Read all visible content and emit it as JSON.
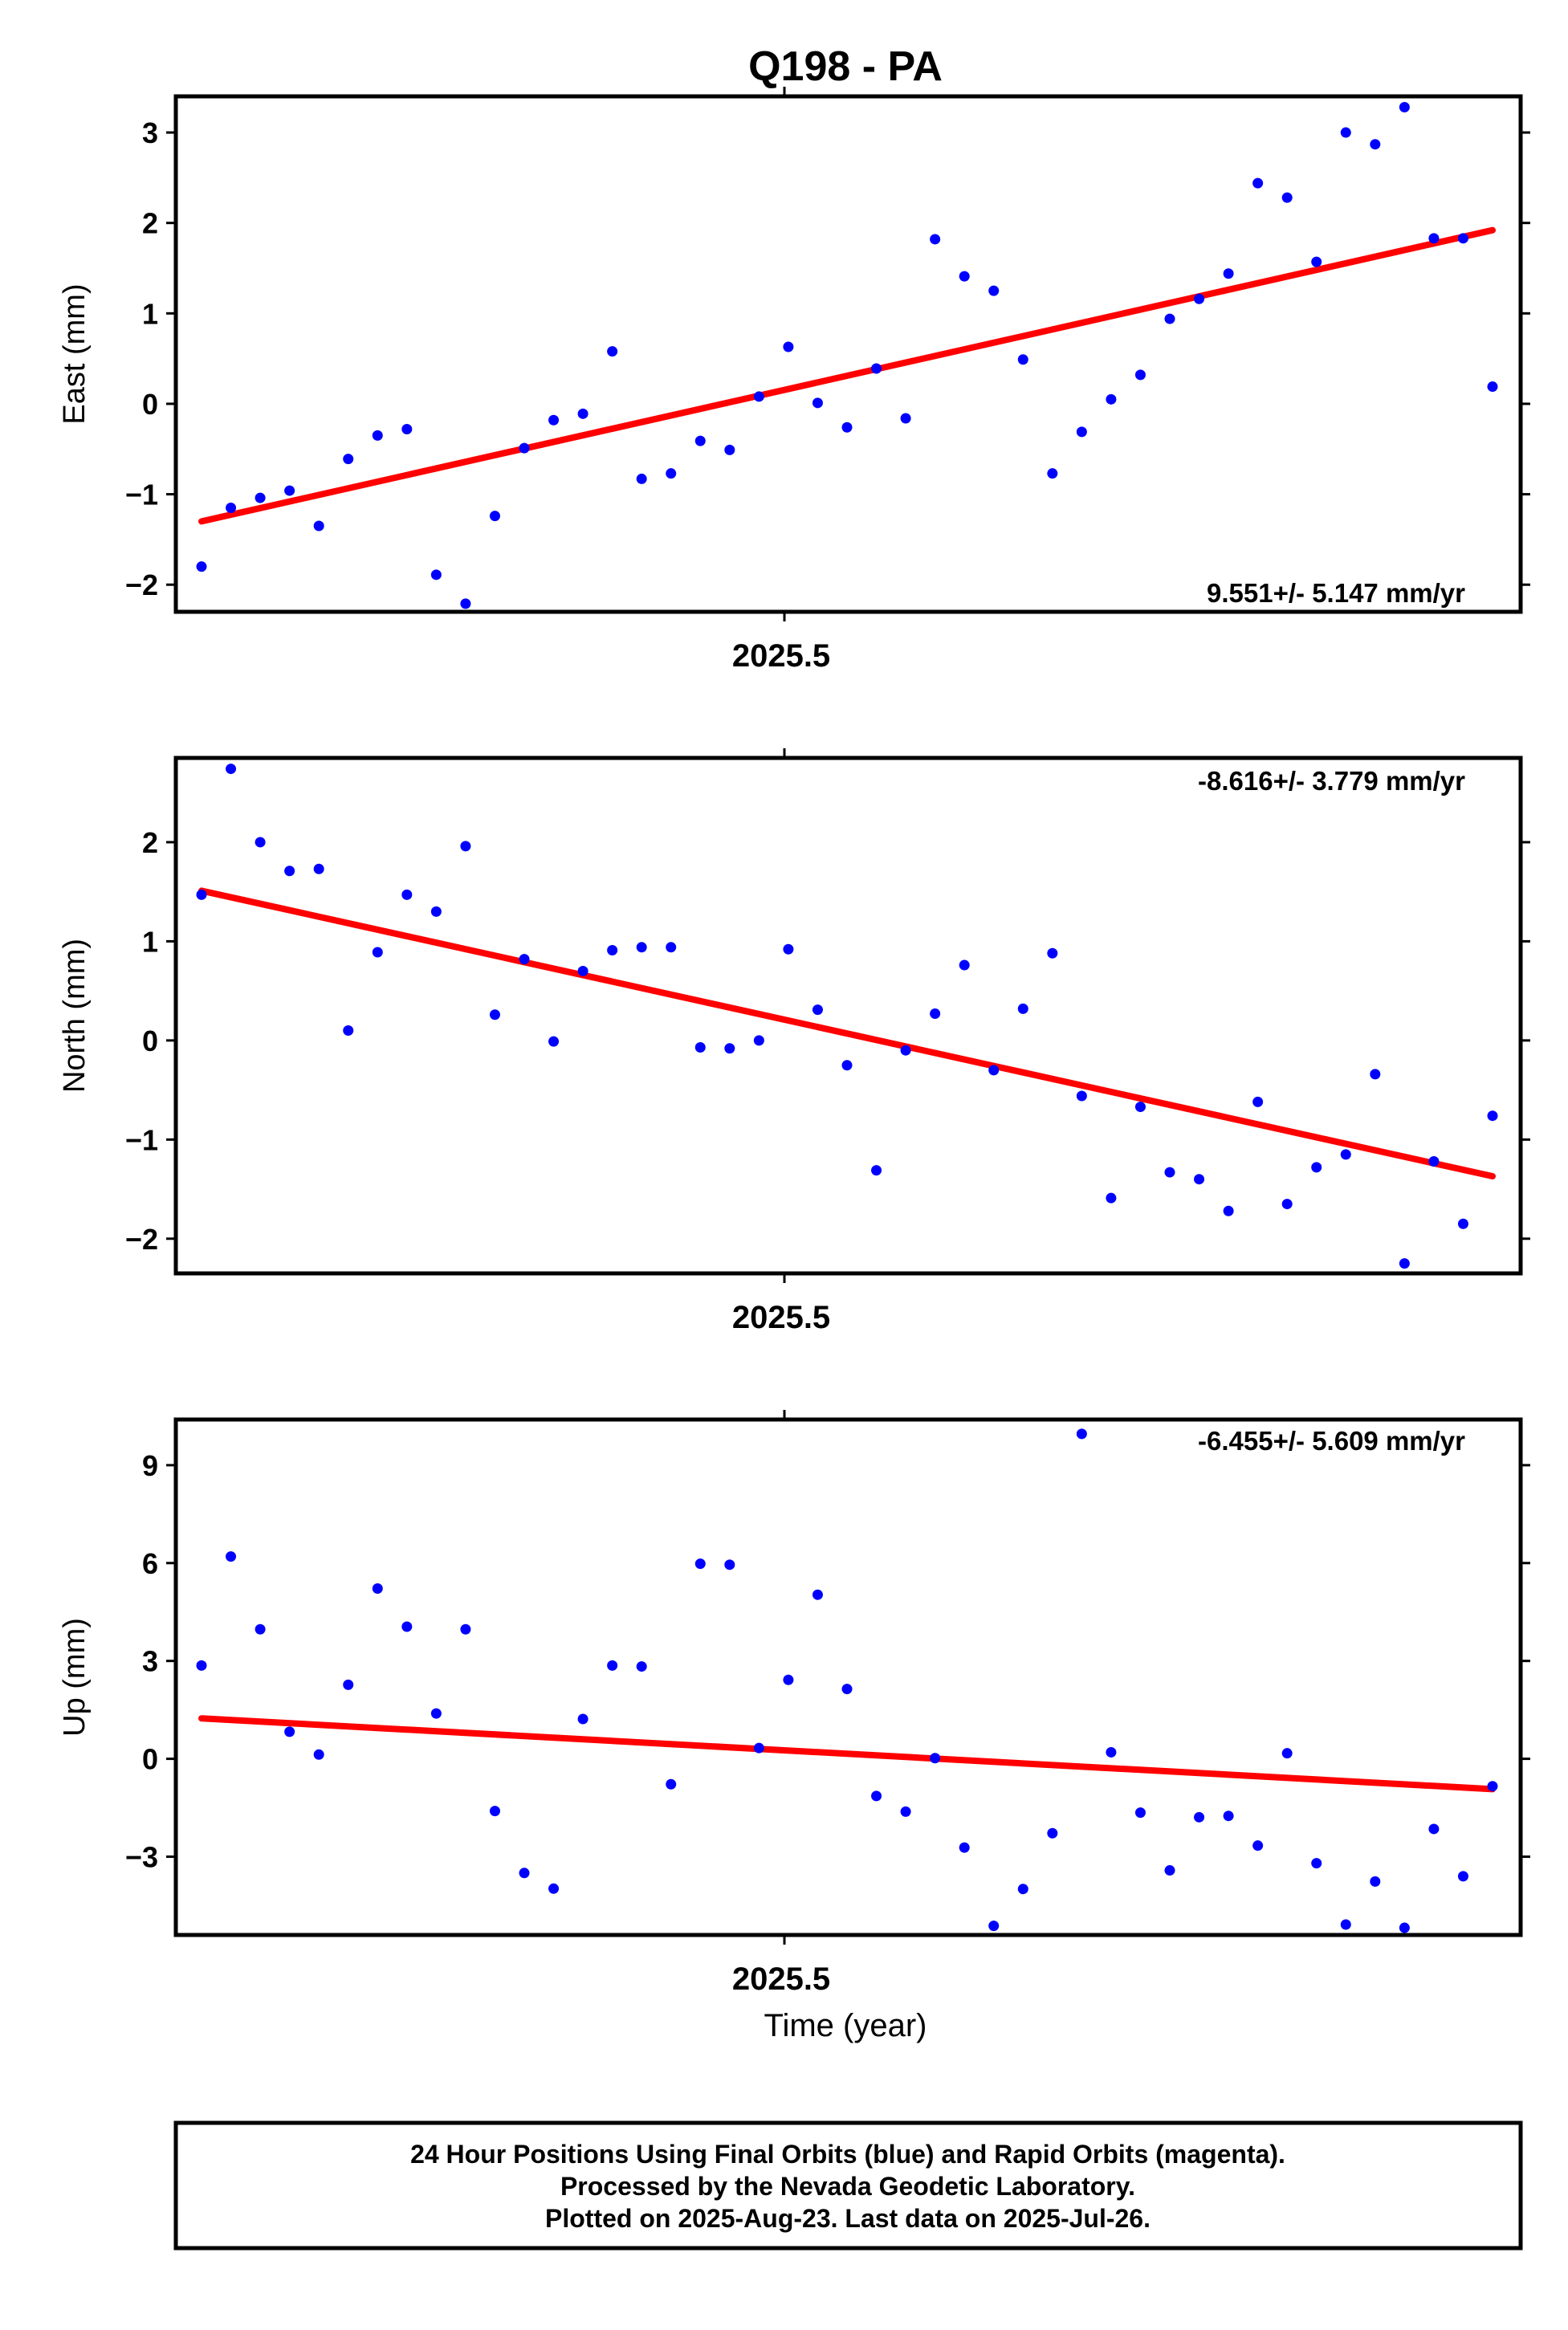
{
  "title": "Q198 - PA",
  "chart_data": [
    {
      "type": "scatter",
      "name": "east",
      "ylabel": "East (mm)",
      "xtick_label": "2025.5",
      "ylim": [
        -2.3,
        3.4
      ],
      "yticks": [
        -2,
        -1,
        0,
        1,
        2,
        3
      ],
      "ytick_labels": [
        "−2",
        "−1",
        "0",
        "1",
        "2",
        "3"
      ],
      "rate_label": "9.551+/- 5.147 mm/yr",
      "rate_position": "bottom-right",
      "points": [
        -1.8,
        -1.15,
        -1.04,
        -0.96,
        -1.35,
        -0.61,
        -0.35,
        -0.28,
        -1.89,
        -2.21,
        -1.24,
        -0.49,
        -0.18,
        -0.11,
        0.58,
        -0.83,
        -0.77,
        -0.41,
        -0.51,
        0.08,
        0.63,
        0.01,
        -0.26,
        0.39,
        -0.16,
        1.82,
        1.41,
        1.25,
        0.49,
        -0.77,
        -0.31,
        0.05,
        0.32,
        0.94,
        1.16,
        1.44,
        2.44,
        2.28,
        1.57,
        3.0,
        2.87,
        3.28,
        1.83,
        1.83,
        0.19
      ],
      "trend": [
        -1.3,
        1.92
      ],
      "point_color": "#0000ff",
      "trend_color": "#ff0000"
    },
    {
      "type": "scatter",
      "name": "north",
      "ylabel": "North (mm)",
      "xtick_label": "2025.5",
      "ylim": [
        -2.35,
        2.85
      ],
      "yticks": [
        -2,
        -1,
        0,
        1,
        2
      ],
      "ytick_labels": [
        "−2",
        "−1",
        "0",
        "1",
        "2"
      ],
      "rate_label": "-8.616+/- 3.779 mm/yr",
      "rate_position": "top-right",
      "points": [
        1.47,
        2.74,
        2.0,
        1.71,
        1.73,
        0.1,
        0.89,
        1.47,
        1.3,
        1.96,
        0.26,
        0.82,
        -0.01,
        0.7,
        0.91,
        0.94,
        0.94,
        -0.07,
        -0.08,
        0.0,
        0.92,
        0.31,
        -0.25,
        -1.31,
        -0.1,
        0.27,
        0.76,
        -0.3,
        0.32,
        0.88,
        -0.56,
        -1.59,
        -0.67,
        -1.33,
        -1.4,
        -1.72,
        -0.62,
        -1.65,
        -1.28,
        -1.15,
        -0.34,
        -2.25,
        -1.22,
        -1.85,
        -0.76
      ],
      "trend": [
        1.51,
        -1.37
      ],
      "point_color": "#0000ff",
      "trend_color": "#ff0000"
    },
    {
      "type": "scatter",
      "name": "up",
      "ylabel": "Up (mm)",
      "xtick_label": "2025.5",
      "xlabel": "Time (year)",
      "ylim": [
        -5.4,
        10.4
      ],
      "yticks": [
        -3,
        0,
        3,
        6,
        9
      ],
      "ytick_labels": [
        "−3",
        "0",
        "3",
        "6",
        "9"
      ],
      "rate_label": "-6.455+/- 5.609 mm/yr",
      "rate_position": "top-right",
      "points": [
        2.86,
        6.2,
        3.97,
        0.83,
        0.13,
        2.27,
        5.22,
        4.05,
        1.39,
        3.97,
        -1.6,
        -3.5,
        -3.98,
        1.22,
        2.86,
        2.83,
        -0.78,
        5.98,
        5.95,
        0.33,
        2.42,
        5.03,
        2.14,
        -1.14,
        -1.62,
        0.02,
        -2.72,
        -5.12,
        -3.99,
        -2.28,
        9.96,
        0.2,
        -1.65,
        -3.42,
        -1.79,
        -1.75,
        -2.66,
        0.17,
        -3.2,
        -5.08,
        -3.76,
        -5.18,
        -2.15,
        -3.6,
        -0.84
      ],
      "trend": [
        1.24,
        -0.93
      ],
      "point_color": "#0000ff",
      "trend_color": "#ff0000"
    }
  ],
  "footer": {
    "line1": "24 Hour Positions Using Final Orbits (blue) and Rapid Orbits (magenta).",
    "line2": "Processed by the Nevada Geodetic Laboratory.",
    "line3": "Plotted on 2025-Aug-23. Last data on 2025-Jul-26."
  }
}
